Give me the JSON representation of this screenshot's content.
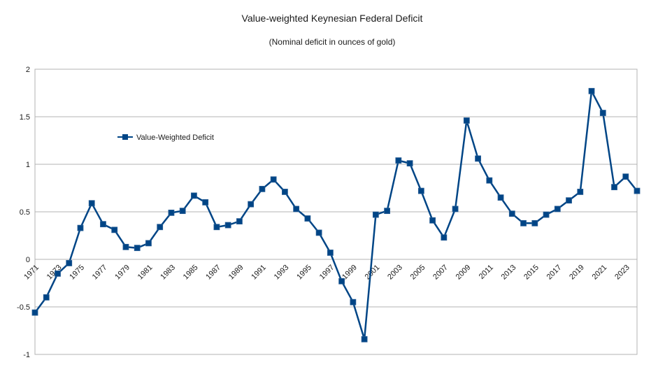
{
  "chart_data": {
    "type": "line",
    "title": "Value-weighted Keynesian Federal Deficit",
    "subtitle": "(Nominal deficit in ounces of gold)",
    "xlabel": "",
    "ylabel": "",
    "ylim": [
      -1,
      2
    ],
    "yticks": [
      -1,
      -0.5,
      0,
      0.5,
      1,
      1.5,
      2
    ],
    "ytick_labels": [
      "-1",
      "-0.5",
      "0",
      "0.5",
      "1",
      "1.5",
      "2"
    ],
    "grid": true,
    "legend_position": "upper-left",
    "x": [
      1971,
      1972,
      1973,
      1974,
      1975,
      1976,
      1977,
      1978,
      1979,
      1980,
      1981,
      1982,
      1983,
      1984,
      1985,
      1986,
      1987,
      1988,
      1989,
      1990,
      1991,
      1992,
      1993,
      1994,
      1995,
      1996,
      1997,
      1998,
      1999,
      2000,
      2001,
      2002,
      2003,
      2004,
      2005,
      2006,
      2007,
      2008,
      2009,
      2010,
      2011,
      2012,
      2013,
      2014,
      2015,
      2016,
      2017,
      2018,
      2019,
      2020,
      2021,
      2022,
      2023,
      2024
    ],
    "xtick_labels": [
      "1971",
      "1973",
      "1975",
      "1977",
      "1979",
      "1981",
      "1983",
      "1985",
      "1987",
      "1989",
      "1991",
      "1993",
      "1995",
      "1997",
      "1999",
      "2001",
      "2003",
      "2005",
      "2007",
      "2009",
      "2011",
      "2013",
      "2015",
      "2017",
      "2019",
      "2021",
      "2023"
    ],
    "series": [
      {
        "name": "Value-Weighted Deficit",
        "color": "#004586",
        "values": [
          -0.56,
          -0.4,
          -0.15,
          -0.04,
          0.33,
          0.59,
          0.37,
          0.31,
          0.13,
          0.12,
          0.17,
          0.34,
          0.49,
          0.51,
          0.67,
          0.6,
          0.34,
          0.36,
          0.4,
          0.58,
          0.74,
          0.84,
          0.71,
          0.53,
          0.43,
          0.28,
          0.07,
          -0.23,
          -0.45,
          -0.84,
          0.47,
          0.51,
          1.04,
          1.01,
          0.72,
          0.41,
          0.23,
          0.53,
          1.46,
          1.06,
          0.83,
          0.65,
          0.48,
          0.38,
          0.38,
          0.47,
          0.53,
          0.62,
          0.71,
          1.77,
          1.54,
          0.76,
          0.87,
          0.72
        ]
      }
    ]
  }
}
